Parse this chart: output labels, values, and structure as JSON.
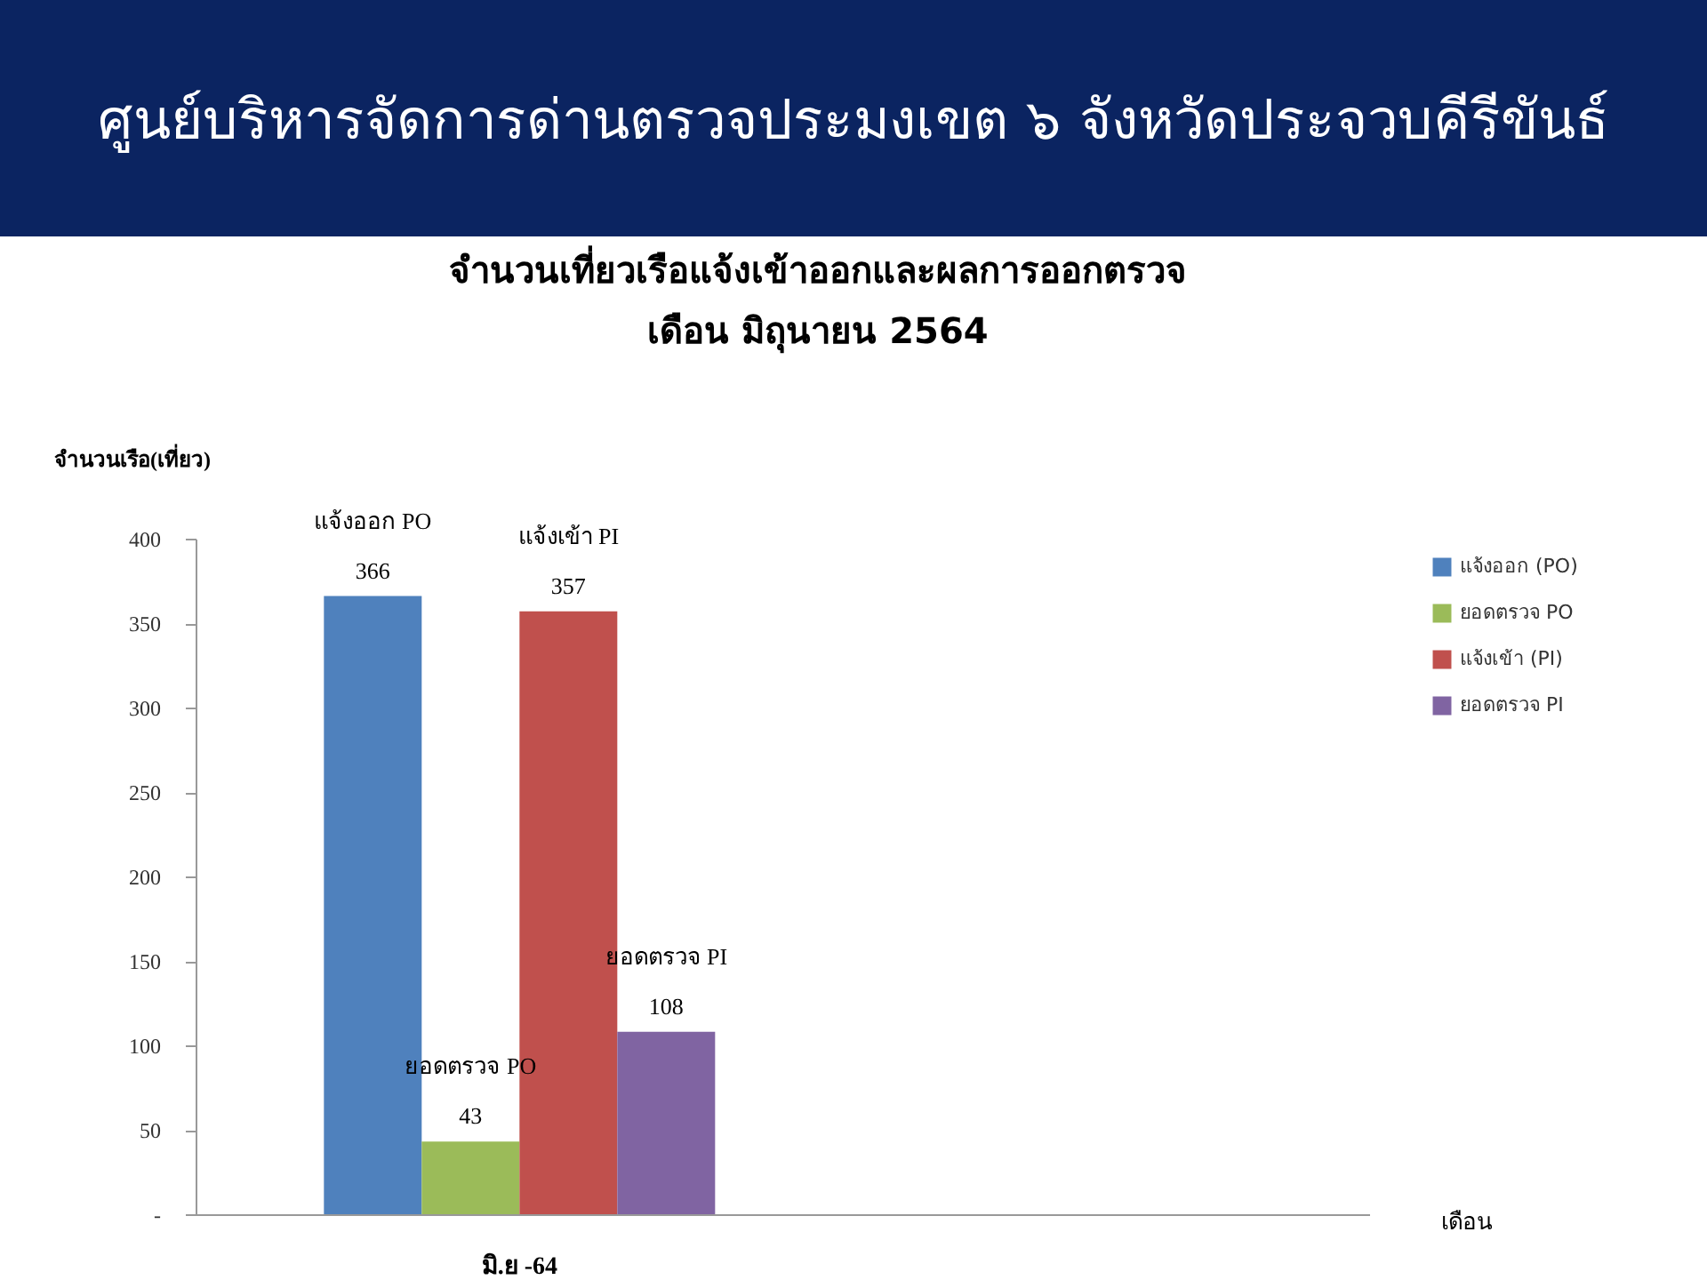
{
  "chart_data": {
    "type": "bar",
    "title": "ศูนย์บริหารจัดการด่านตรวจประมงเขต ๖ จังหวัดประจวบคีรีขันธ์",
    "subtitle": "จำนวนเที่ยวเรือแจ้งเข้าออกและผลการออกตรวจ\nเดือน มิถุนายน 2564",
    "xlabel": "เดือน",
    "ylabel": "จำนวนเรือ(เที่ยว)",
    "categories": [
      "มิ.ย -64"
    ],
    "series": [
      {
        "name": "แจ้งออก (PO)",
        "color": "#4f81bd",
        "values": [
          366
        ]
      },
      {
        "name": "ยอดตรวจ PO",
        "color": "#9bbb59",
        "values": [
          43
        ]
      },
      {
        "name": "แจ้งเข้า (PI)",
        "color": "#c0504d",
        "values": [
          357
        ]
      },
      {
        "name": "ยอดตรวจ PI",
        "color": "#8064a2",
        "values": [
          108
        ]
      }
    ],
    "annotations": [
      "แจ้งออก PO",
      "ยอดตรวจ PO",
      "แจ้งเข้า PI",
      "ยอดตรวจ PI"
    ],
    "data_labels": true,
    "ylim": [
      0,
      400
    ],
    "yticks": [
      {
        "value": 0,
        "label": "-"
      },
      50,
      100,
      150,
      200,
      250,
      300,
      350,
      400
    ],
    "grid": false,
    "legend": "right"
  }
}
